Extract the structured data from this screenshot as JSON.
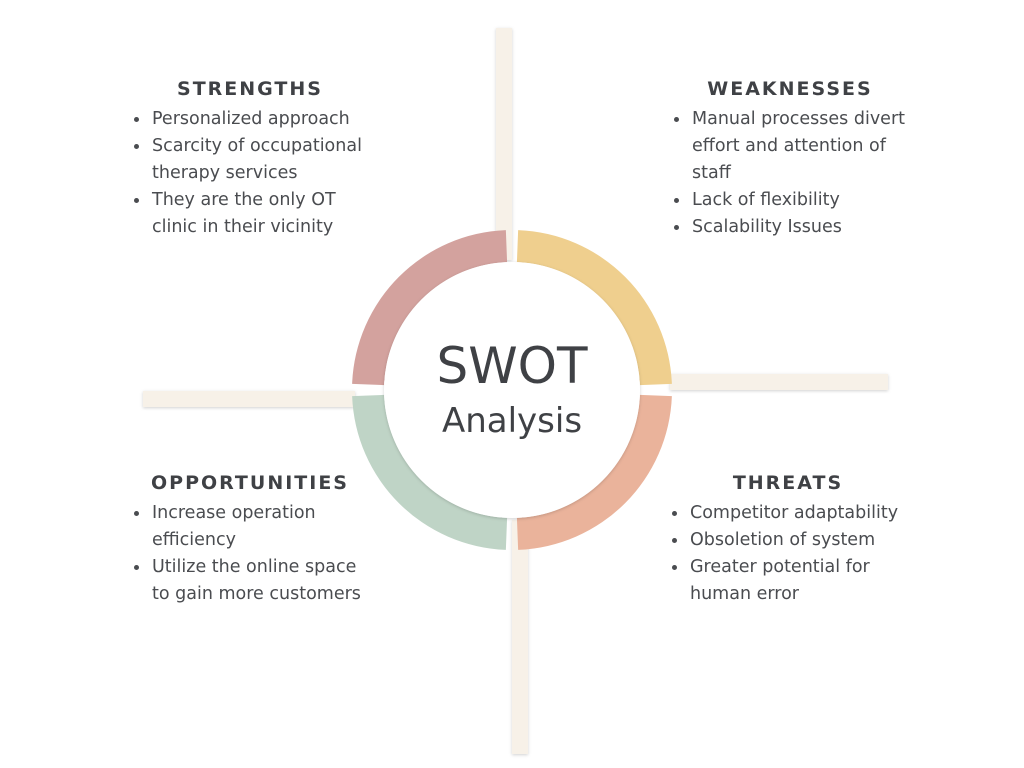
{
  "title": "SWOT",
  "subtitle": "Analysis",
  "colors": {
    "strengths": "#d3a29e",
    "weaknesses": "#efcf8e",
    "threats": "#eab39b",
    "opportunities": "#bfd4c6",
    "line": "#f7f1e8",
    "text": "#3f4145"
  },
  "quadrants": {
    "strengths": {
      "heading": "STRENGTHS",
      "items": [
        "Personalized approach",
        "Scarcity of occupational therapy services",
        "They are the only OT clinic in their vicinity"
      ]
    },
    "weaknesses": {
      "heading": "WEAKNESSES",
      "items": [
        "Manual processes divert effort and attention of staff",
        "Lack of flexibility",
        "Scalability Issues"
      ]
    },
    "opportunities": {
      "heading": "OPPORTUNITIES",
      "items": [
        "Increase operation efficiency",
        "Utilize the online space to gain more customers"
      ]
    },
    "threats": {
      "heading": "THREATS",
      "items": [
        "Competitor adaptability",
        "Obsoletion of system",
        "Greater potential for human error"
      ]
    }
  }
}
